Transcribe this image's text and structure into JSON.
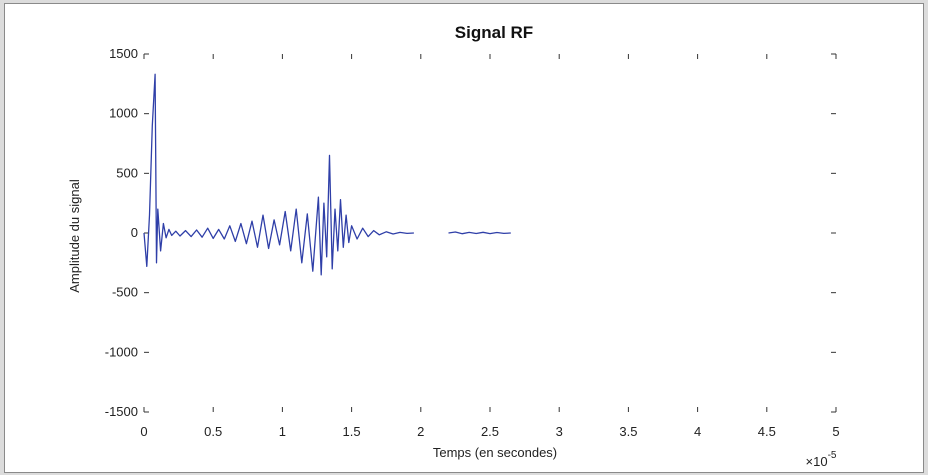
{
  "chart_data": {
    "type": "line",
    "title": "Signal RF",
    "xlabel": "Temps (en secondes)",
    "ylabel": "Amplitude du signal",
    "x_multiplier": "×10",
    "x_multiplier_exp": "-5",
    "xlim": [
      0,
      5e-05
    ],
    "ylim": [
      -1500,
      1500
    ],
    "xticks": [
      0,
      5e-06,
      1e-05,
      1.5e-05,
      2e-05,
      2.5e-05,
      3e-05,
      3.5e-05,
      4e-05,
      4.5e-05,
      5e-05
    ],
    "xtick_labels": [
      "0",
      "0.5",
      "1",
      "1.5",
      "2",
      "2.5",
      "3",
      "3.5",
      "4",
      "4.5",
      "5"
    ],
    "yticks": [
      -1500,
      -1000,
      -500,
      0,
      500,
      1000,
      1500
    ],
    "ytick_labels": [
      "-1500",
      "-1000",
      "-500",
      "0",
      "500",
      "1000",
      "1500"
    ],
    "grid": false,
    "box": false,
    "line_color": "#2f3fa8",
    "series": [
      {
        "x": [
          0,
          2e-07,
          4e-07,
          6e-07,
          8e-07,
          9e-07,
          1e-06,
          1.2e-06,
          1.4e-06,
          1.6e-06,
          1.8e-06,
          2e-06,
          2.3e-06,
          2.6e-06,
          3e-06,
          3.4e-06,
          3.8e-06,
          4.2e-06,
          4.6e-06,
          5e-06,
          5.4e-06,
          5.8e-06,
          6.2e-06,
          6.6e-06,
          7e-06,
          7.4e-06,
          7.8e-06,
          8.2e-06,
          8.6e-06,
          9e-06,
          9.4e-06,
          9.8e-06,
          1.02e-05,
          1.06e-05,
          1.1e-05,
          1.14e-05,
          1.18e-05,
          1.22e-05,
          1.26e-05,
          1.28e-05,
          1.3e-05,
          1.32e-05,
          1.34e-05,
          1.36e-05,
          1.38e-05,
          1.4e-05,
          1.42e-05,
          1.44e-05,
          1.46e-05,
          1.48e-05,
          1.5e-05,
          1.54e-05,
          1.58e-05,
          1.62e-05,
          1.66e-05,
          1.7e-05,
          1.75e-05,
          1.8e-05,
          1.85e-05,
          1.9e-05,
          1.95e-05
        ],
        "y": [
          0,
          -280,
          150,
          900,
          1330,
          -250,
          200,
          -150,
          80,
          -40,
          30,
          -20,
          15,
          -25,
          20,
          -30,
          25,
          -35,
          40,
          -45,
          30,
          -50,
          60,
          -70,
          80,
          -90,
          100,
          -120,
          150,
          -130,
          110,
          -100,
          180,
          -150,
          200,
          -250,
          160,
          -320,
          300,
          -350,
          250,
          -200,
          650,
          -300,
          200,
          -150,
          280,
          -120,
          150,
          -80,
          60,
          -50,
          40,
          -30,
          20,
          -15,
          10,
          -8,
          5,
          -3,
          0
        ]
      },
      {
        "x": [
          2.2e-05,
          2.25e-05,
          2.3e-05,
          2.35e-05,
          2.4e-05,
          2.45e-05,
          2.5e-05,
          2.55e-05,
          2.6e-05,
          2.65e-05
        ],
        "y": [
          0,
          8,
          -6,
          5,
          -4,
          6,
          -5,
          4,
          -3,
          0
        ]
      }
    ]
  }
}
